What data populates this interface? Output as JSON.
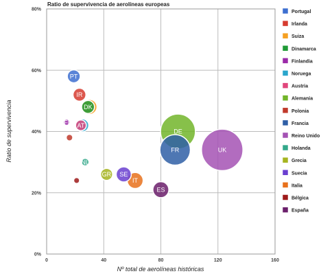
{
  "chart_data": {
    "type": "scatter",
    "title": "Ratio de supervivencia de aerolíneas europeas",
    "xlabel": "Nº total de aerolíneas históricas",
    "ylabel": "Ratio de supervivencia",
    "xlim": [
      0,
      160
    ],
    "ylim": [
      0,
      80
    ],
    "x_ticks": [
      "0",
      "40",
      "80",
      "120",
      "160"
    ],
    "y_ticks": [
      "0%",
      "20%",
      "40%",
      "60%",
      "80%"
    ],
    "grid": true,
    "legend_position": "right",
    "series": [
      {
        "name": "Portugal",
        "label": "PT",
        "x": 19,
        "y": 58,
        "size": 2,
        "color": "#3d6fd0"
      },
      {
        "name": "Irlanda",
        "label": "IR",
        "x": 23,
        "y": 52,
        "size": 2,
        "color": "#d63b2f"
      },
      {
        "name": "Suiza",
        "label": "",
        "x": 30,
        "y": 48,
        "size": 2.5,
        "color": "#f5a022"
      },
      {
        "name": "Dinamarca",
        "label": "DK",
        "x": 29,
        "y": 48,
        "size": 2,
        "color": "#1f9a36"
      },
      {
        "name": "Finlandia",
        "label": "FI",
        "x": 14,
        "y": 43,
        "size": 0.3,
        "color": "#9b2aa8"
      },
      {
        "name": "Noruega",
        "label": "",
        "x": 25,
        "y": 42,
        "size": 2,
        "color": "#2aa6cc"
      },
      {
        "name": "Austria",
        "label": "AT",
        "x": 24,
        "y": 42,
        "size": 1.5,
        "color": "#e0467c"
      },
      {
        "name": "Alemania",
        "label": "DE",
        "x": 92,
        "y": 40,
        "size": 7,
        "color": "#72b52a"
      },
      {
        "name": "Polonia",
        "label": "",
        "x": 16,
        "y": 38,
        "size": 0.4,
        "color": "#c0392b"
      },
      {
        "name": "Francia",
        "label": "FR",
        "x": 90,
        "y": 34,
        "size": 6,
        "color": "#2f5fa6"
      },
      {
        "name": "Reino Unido",
        "label": "UK",
        "x": 123,
        "y": 34,
        "size": 8.5,
        "color": "#a452b4"
      },
      {
        "name": "Holanda",
        "label": "NL",
        "x": 27,
        "y": 30,
        "size": 0.8,
        "color": "#33a88a"
      },
      {
        "name": "Grecia",
        "label": "GR",
        "x": 42,
        "y": 26,
        "size": 1.8,
        "color": "#a6b420"
      },
      {
        "name": "Suecia",
        "label": "SE",
        "x": 54,
        "y": 26,
        "size": 2.5,
        "color": "#6a3fd0"
      },
      {
        "name": "Italia",
        "label": "IT",
        "x": 62,
        "y": 24,
        "size": 2.7,
        "color": "#e8711c"
      },
      {
        "name": "Bélgica",
        "label": "",
        "x": 21,
        "y": 24,
        "size": 0.25,
        "color": "#9e1a1a"
      },
      {
        "name": "España",
        "label": "ES",
        "x": 80,
        "y": 21,
        "size": 2.7,
        "color": "#6b1f6b"
      }
    ]
  }
}
